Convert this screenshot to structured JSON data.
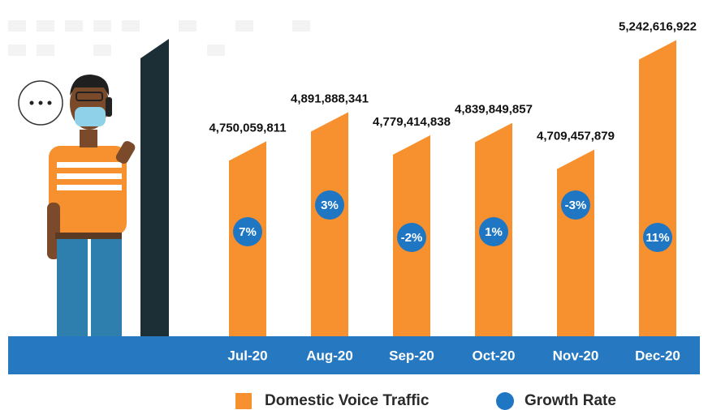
{
  "chart_data": {
    "type": "bar",
    "categories": [
      "Jul-20",
      "Aug-20",
      "Sep-20",
      "Oct-20",
      "Nov-20",
      "Dec-20"
    ],
    "series": [
      {
        "name": "Domestic Voice Traffic",
        "color": "#f7912f",
        "values": [
          4750059811,
          4891888341,
          4779414838,
          4839849857,
          4709457879,
          5242616922
        ],
        "value_labels": [
          "4,750,059,811",
          "4,891,888,341",
          "4,779,414,838",
          "4,839,849,857",
          "4,709,457,879",
          "5,242,616,922"
        ]
      },
      {
        "name": "Growth Rate",
        "color": "#1f77c4",
        "values": [
          7,
          3,
          -2,
          1,
          -3,
          11
        ],
        "value_labels": [
          "7%",
          "3%",
          "-2%",
          "1%",
          "-3%",
          "11%"
        ]
      }
    ],
    "ylim": [
      3800000000,
      5300000000
    ]
  }
}
